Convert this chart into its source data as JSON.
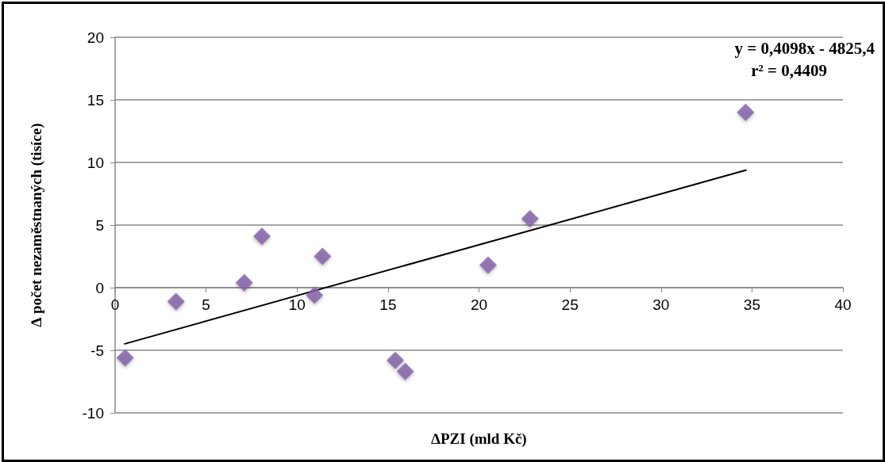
{
  "chart_data": {
    "type": "scatter",
    "xlabel": "∆PZI (mld Kč)",
    "ylabel": "∆ počet nezaměstnaných (tisíce)",
    "xlim": [
      0,
      40
    ],
    "xticks": [
      0,
      5,
      10,
      15,
      20,
      25,
      30,
      35,
      40
    ],
    "ylim": [
      -10,
      20
    ],
    "yticks": [
      -10,
      -5,
      0,
      5,
      10,
      15,
      20
    ],
    "grid": "y",
    "marker": "diamond",
    "series": [
      {
        "color": "#7f5fa8",
        "x": [
          0.55,
          3.35,
          7.1,
          8.07,
          10.96,
          11.4,
          15.4,
          15.95,
          20.5,
          22.8,
          34.65
        ],
        "values": [
          -5.6,
          -1.1,
          0.4,
          4.1,
          -0.6,
          2.5,
          -5.8,
          -6.7,
          1.8,
          5.5,
          14.0
        ]
      },
      {
        "type": "line",
        "color": "#000000",
        "x": [
          0.5,
          34.7
        ],
        "values": [
          -4.5,
          9.4
        ],
        "marker": "none",
        "line_style": "solid"
      }
    ],
    "annotations": [
      "y = 0,4098x - 4825,4",
      "r² = 0,4409"
    ]
  }
}
